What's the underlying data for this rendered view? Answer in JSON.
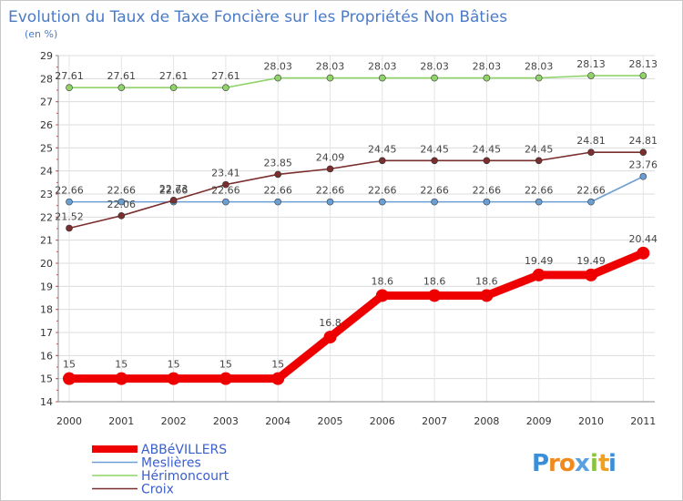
{
  "chart_data": {
    "type": "line",
    "title": "Evolution du Taux de Taxe Foncière sur les Propriétés Non Bâties",
    "ylabel": "(en %)",
    "xlabel": "",
    "x": [
      "2000",
      "2001",
      "2002",
      "2003",
      "2004",
      "2005",
      "2006",
      "2007",
      "2008",
      "2009",
      "2010",
      "2011"
    ],
    "ylim": [
      14,
      29
    ],
    "yticks": [
      "14",
      "15",
      "16",
      "17",
      "18",
      "19",
      "20",
      "21",
      "22",
      "23",
      "24",
      "25",
      "26",
      "27",
      "28",
      "29"
    ],
    "grid": true,
    "legend_position": "bottom-left",
    "series": [
      {
        "name": "ABBéVILLERS",
        "color": "#ee0000",
        "values": [
          15,
          15,
          15,
          15,
          15,
          16.8,
          18.6,
          18.6,
          18.6,
          19.49,
          19.49,
          20.44
        ],
        "labels": [
          "15",
          "15",
          "15",
          "15",
          "15",
          "16.8",
          "18.6",
          "18.6",
          "18.6",
          "19.49",
          "19.49",
          "20.44"
        ]
      },
      {
        "name": "Meslières",
        "color": "#6b9fd4",
        "values": [
          22.66,
          22.66,
          22.66,
          22.66,
          22.66,
          22.66,
          22.66,
          22.66,
          22.66,
          22.66,
          22.66,
          23.76
        ],
        "labels": [
          "22.66",
          "22.66",
          "22.66",
          "22.66",
          "22.66",
          "22.66",
          "22.66",
          "22.66",
          "22.66",
          "22.66",
          "22.66",
          "23.76"
        ]
      },
      {
        "name": "Hérimoncourt",
        "color": "#8fd36a",
        "values": [
          27.61,
          27.61,
          27.61,
          27.61,
          28.03,
          28.03,
          28.03,
          28.03,
          28.03,
          28.03,
          28.13,
          28.13
        ],
        "labels": [
          "27.61",
          "27.61",
          "27.61",
          "27.61",
          "28.03",
          "28.03",
          "28.03",
          "28.03",
          "28.03",
          "28.03",
          "28.13",
          "28.13"
        ]
      },
      {
        "name": "Croix",
        "color": "#7a2e2e",
        "values": [
          21.52,
          22.06,
          22.73,
          23.41,
          23.85,
          24.09,
          24.45,
          24.45,
          24.45,
          24.45,
          24.81,
          24.81
        ],
        "labels": [
          "21.52",
          "22.06",
          "22.73",
          "23.41",
          "23.85",
          "24.09",
          "24.45",
          "24.45",
          "24.45",
          "24.45",
          "24.81",
          "24.81"
        ]
      }
    ]
  },
  "logo": {
    "text": "Proxiti",
    "letters": [
      "P",
      "r",
      "o",
      "x",
      "i",
      "t",
      "i"
    ],
    "colors": [
      "#3a8fd8",
      "#f08a1c",
      "#f08a1c",
      "#5aa0e0",
      "#8ac43a",
      "#f0a020",
      "#3a8fd8"
    ]
  }
}
